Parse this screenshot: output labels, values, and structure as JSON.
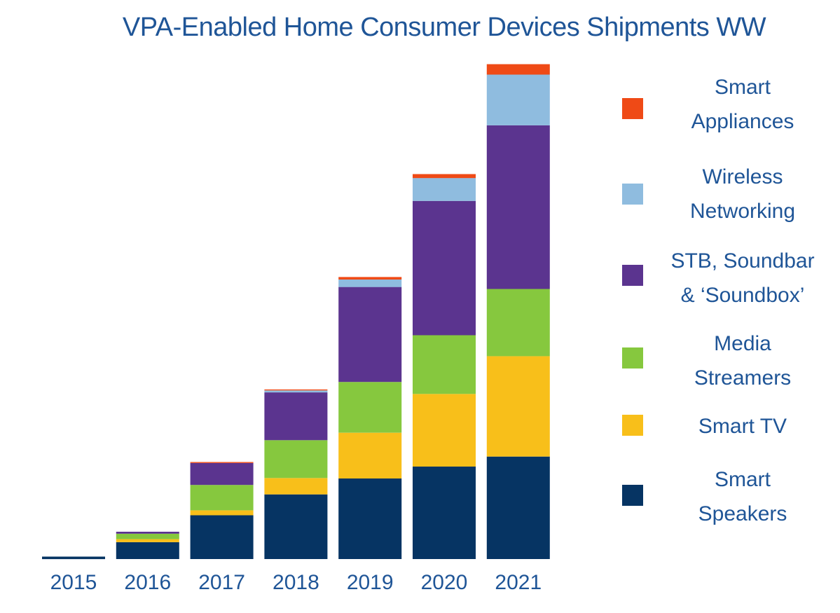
{
  "chart_data": {
    "type": "bar",
    "stacked": true,
    "title": "VPA-Enabled Home Consumer Devices Shipments WW",
    "xlabel": "",
    "ylabel": "",
    "categories": [
      "2015",
      "2016",
      "2017",
      "2018",
      "2019",
      "2020",
      "2021"
    ],
    "ylim": [
      0,
      100
    ],
    "series": [
      {
        "name": "Smart Speakers",
        "color": "#063463",
        "values": [
          0.5,
          3.4,
          8.8,
          13.0,
          16.2,
          18.6,
          20.6
        ]
      },
      {
        "name": "Smart TV",
        "color": "#f8bf1a",
        "values": [
          0,
          0.6,
          1.0,
          3.3,
          9.2,
          14.6,
          20.2
        ]
      },
      {
        "name": "Media Streamers",
        "color": "#86c83e",
        "values": [
          0,
          1.1,
          5.1,
          7.6,
          10.2,
          11.8,
          13.5
        ]
      },
      {
        "name": "STB, Soundbar & ‘Soundbox’",
        "color": "#5b348f",
        "values": [
          0,
          0.4,
          4.4,
          9.6,
          19.1,
          27.0,
          32.9
        ]
      },
      {
        "name": "Wireless Networking",
        "color": "#8fbcdf",
        "values": [
          0,
          0,
          0,
          0.4,
          1.5,
          4.6,
          10.2
        ]
      },
      {
        "name": "Smart Appliances",
        "color": "#ef4a16",
        "values": [
          0,
          0,
          0.2,
          0.2,
          0.5,
          0.8,
          2.1
        ]
      }
    ],
    "legend_position": "right",
    "grid": false
  }
}
